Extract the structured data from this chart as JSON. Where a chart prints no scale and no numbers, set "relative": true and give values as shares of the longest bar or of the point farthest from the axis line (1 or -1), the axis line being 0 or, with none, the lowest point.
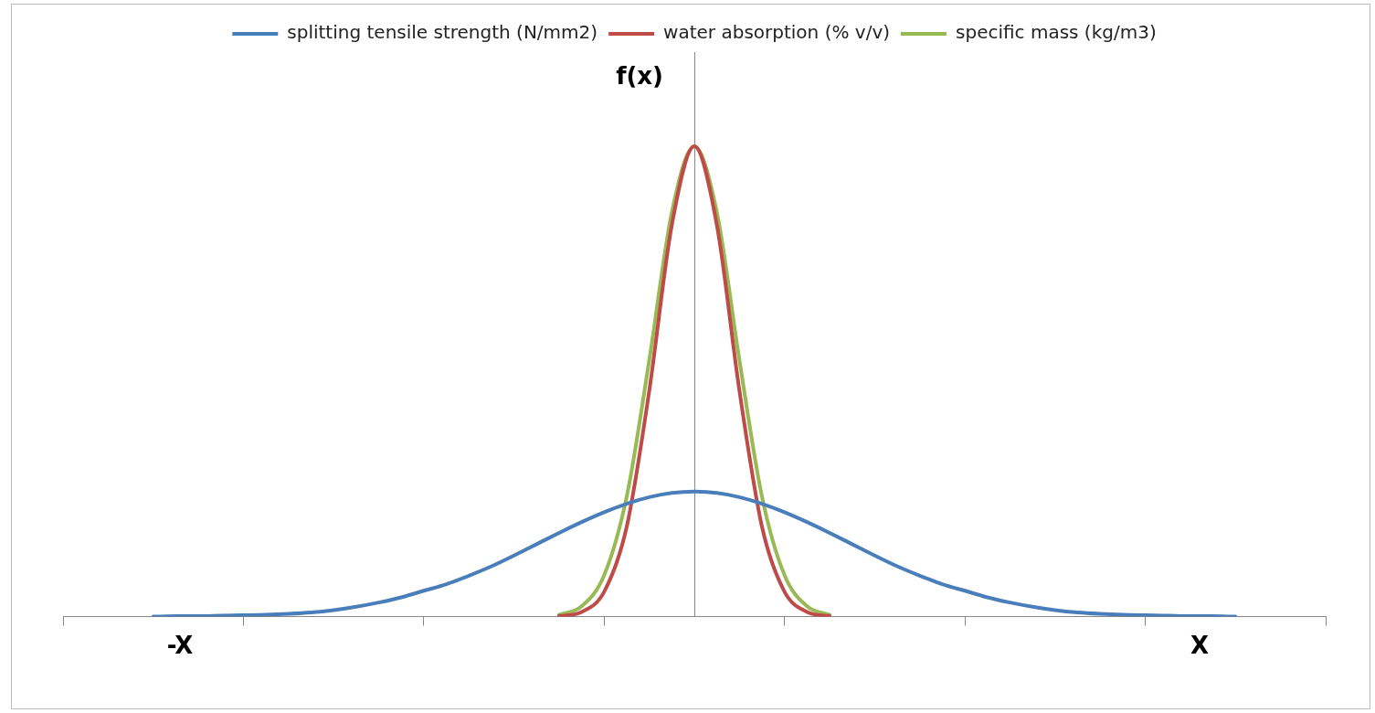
{
  "chart_data": {
    "type": "line",
    "relative": true,
    "legend": "top",
    "ylabel": "f(x)",
    "annotations": [
      "-X",
      "X"
    ],
    "categories": [
      null,
      null,
      null,
      null,
      null,
      null,
      null,
      null,
      null,
      null,
      null,
      null,
      null,
      null,
      null,
      null,
      null,
      null,
      null,
      null,
      null,
      null,
      null,
      null,
      null,
      null,
      null,
      null,
      null,
      null,
      null,
      null,
      null,
      null,
      null,
      null,
      null,
      null,
      null,
      null,
      null,
      null,
      null,
      null,
      null,
      null,
      null,
      null,
      null,
      null,
      null,
      null,
      null,
      null,
      null,
      null,
      null
    ],
    "series": [
      {
        "name": "splitting tensile strength (N/mm2)",
        "color": "#4a7ebb",
        "values": [
          null,
          null,
          null,
          null,
          0,
          0.001,
          0.001,
          0.002,
          0.003,
          0.004,
          0.006,
          0.009,
          0.014,
          0.021,
          0.03,
          0.041,
          0.055,
          0.069,
          0.087,
          0.107,
          0.13,
          0.154,
          0.178,
          0.201,
          0.222,
          0.24,
          0.254,
          0.263,
          0.266,
          0.263,
          0.254,
          0.24,
          0.222,
          0.201,
          0.178,
          0.154,
          0.13,
          0.107,
          0.087,
          0.069,
          0.055,
          0.041,
          0.03,
          0.021,
          0.014,
          0.009,
          0.006,
          0.004,
          0.003,
          0.002,
          0.001,
          0.001,
          0,
          null,
          null,
          null,
          null
        ]
      },
      {
        "name": "water absorption (% v/v)",
        "color": "#be4b48",
        "values": [
          null,
          null,
          null,
          null,
          null,
          null,
          null,
          null,
          null,
          null,
          null,
          null,
          null,
          null,
          null,
          null,
          null,
          null,
          null,
          null,
          null,
          null,
          0.001,
          0.01,
          0.053,
          0.191,
          0.48,
          0.832,
          1,
          0.832,
          0.48,
          0.191,
          0.053,
          0.01,
          0.001,
          null,
          null,
          null,
          null,
          null,
          null,
          null,
          null,
          null,
          null,
          null,
          null,
          null,
          null,
          null,
          null,
          null,
          null,
          null,
          null,
          null,
          null
        ]
      },
      {
        "name": "specific mass (kg/m3)",
        "color": "#98b954",
        "values": [
          null,
          null,
          null,
          null,
          null,
          null,
          null,
          null,
          null,
          null,
          null,
          null,
          null,
          null,
          null,
          null,
          null,
          null,
          null,
          null,
          null,
          null,
          0.004,
          0.022,
          0.088,
          0.255,
          0.545,
          0.859,
          1,
          0.859,
          0.545,
          0.255,
          0.088,
          0.022,
          0.004,
          null,
          null,
          null,
          null,
          null,
          null,
          null,
          null,
          null,
          null,
          null,
          null,
          null,
          null,
          null,
          null,
          null,
          null,
          null,
          null,
          null,
          null
        ]
      }
    ]
  }
}
